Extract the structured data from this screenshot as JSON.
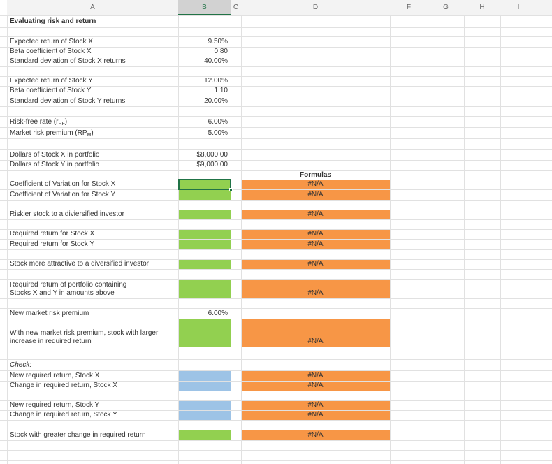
{
  "column_headers": [
    "A",
    "B",
    "C",
    "D",
    "F",
    "G",
    "H",
    "I"
  ],
  "title": "Evaluating risk and return",
  "formulas_header": "Formulas",
  "colors": {
    "answer": "#92d050",
    "formula": "#f79646",
    "check": "#9dc3e6"
  },
  "rows": [
    {
      "label": "Expected return of Stock X",
      "value": "9.50%"
    },
    {
      "label": "Beta coefficient of Stock X",
      "value": "0.80"
    },
    {
      "label": "Standard deviation of Stock X returns",
      "value": "40.00%"
    },
    {
      "label": "Expected return of Stock Y",
      "value": "12.00%"
    },
    {
      "label": "Beta coefficient of Stock Y",
      "value": "1.10"
    },
    {
      "label": "Standard deviation of Stock Y returns",
      "value": "20.00%"
    },
    {
      "label": "Risk-free rate (r",
      "label_sub": "RF",
      "label_end": ")",
      "value": "6.00%"
    },
    {
      "label": "Market risk premium (RP",
      "label_sub": "M",
      "label_end": ")",
      "value": "5.00%"
    },
    {
      "label": "Dollars of Stock X in portfolio",
      "value": "$8,000.00"
    },
    {
      "label": "Dollars of Stock Y in portfolio",
      "value": "$9,000.00"
    },
    {
      "label": "Coefficient of Variation for Stock X",
      "input": "answer",
      "formula": "#N/A"
    },
    {
      "label": "Coefficient of Variation for Stock Y",
      "input": "answer",
      "formula": "#N/A"
    },
    {
      "label": "Riskier stock to a diviersified investor",
      "input": "answer",
      "formula": "#N/A"
    },
    {
      "label": "Required return for Stock X",
      "input": "answer",
      "formula": "#N/A"
    },
    {
      "label": "Required return for Stock Y",
      "input": "answer",
      "formula": "#N/A"
    },
    {
      "label": "Stock more attractive to a diversified investor",
      "input": "answer",
      "formula": "#N/A"
    },
    {
      "label": [
        "Required return of portfolio containing",
        "Stocks X and Y in amounts above"
      ],
      "input": "answer",
      "formula": "#N/A"
    },
    {
      "label": "New market risk premium",
      "value": "6.00%"
    },
    {
      "label": [
        "With new market risk premium, stock with larger",
        "increase in required return"
      ],
      "input": "answer",
      "formula": "#N/A"
    },
    {
      "label": "Check:",
      "style": "italic"
    },
    {
      "label": "New required return, Stock X",
      "input": "check",
      "formula": "#N/A"
    },
    {
      "label": "Change in required return, Stock X",
      "input": "check",
      "formula": "#N/A"
    },
    {
      "label": "New required return, Stock Y",
      "input": "check",
      "formula": "#N/A"
    },
    {
      "label": "Change in required return, Stock Y",
      "input": "check",
      "formula": "#N/A"
    },
    {
      "label": "Stock with greater change in required return",
      "input": "answer",
      "formula": "#N/A"
    }
  ]
}
